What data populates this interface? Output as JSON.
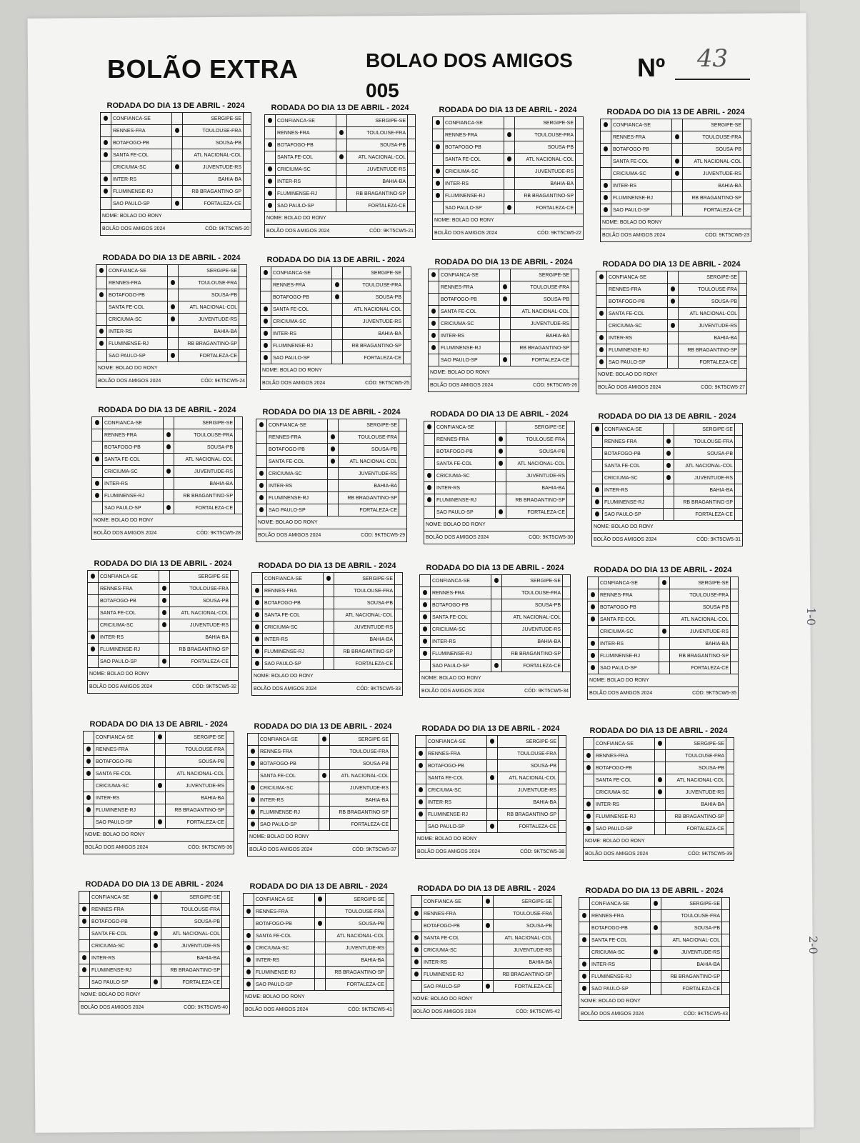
{
  "header": {
    "left_title": "BOLÃO EXTRA",
    "center_title": "BOLAO DOS AMIGOS",
    "center_number": "005",
    "number_label": "Nº",
    "number_handwritten": "43"
  },
  "card_common": {
    "title": "RODADA DO DIA 13 DE ABRIL - 2024",
    "name": "NOME: BOLAO DO RONY",
    "footer_left": "BOLÃO DOS AMIGOS 2024",
    "code_prefix": "CÓD: "
  },
  "matches": [
    {
      "home": "CONFIANCA-SE",
      "away": "SERGIPE-SE"
    },
    {
      "home": "RENNES-FRA",
      "away": "TOULOUSE-FRA"
    },
    {
      "home": "BOTAFOGO-PB",
      "away": "SOUSA-PB"
    },
    {
      "home": "SANTA FE-COL",
      "away": "ATL NACIONAL-COL"
    },
    {
      "home": "CRICIUMA-SC",
      "away": "JUVENTUDE-RS"
    },
    {
      "home": "INTER-RS",
      "away": "BAHIA-BA"
    },
    {
      "home": "FLUMINENSE-RJ",
      "away": "RB BRAGANTINO-SP"
    },
    {
      "home": "SAO PAULO-SP",
      "away": "FORTALEZA-CE"
    }
  ],
  "pick_legend": {
    "1": "mark in first column",
    "X": "mark in middle column"
  },
  "cards": [
    {
      "code": "9KT5CW5-20",
      "picks": [
        "1",
        "X",
        "1",
        "1",
        "X",
        "1",
        "1",
        "X"
      ]
    },
    {
      "code": "9KT5CW5-21",
      "picks": [
        "1",
        "X",
        "1",
        "X",
        "1",
        "1",
        "1",
        "1"
      ]
    },
    {
      "code": "9KT5CW5-22",
      "picks": [
        "1",
        "X",
        "1",
        "X",
        "1",
        "1",
        "1",
        "X"
      ]
    },
    {
      "code": "9KT5CW5-23",
      "picks": [
        "1",
        "X",
        "1",
        "X",
        "X",
        "1",
        "1",
        "1"
      ]
    },
    {
      "code": "9KT5CW5-24",
      "picks": [
        "1",
        "X",
        "1",
        "X",
        "X",
        "1",
        "1",
        "X"
      ]
    },
    {
      "code": "9KT5CW5-25",
      "picks": [
        "1",
        "X",
        "X",
        "1",
        "1",
        "1",
        "1",
        "1"
      ]
    },
    {
      "code": "9KT5CW5-26",
      "picks": [
        "1",
        "X",
        "X",
        "1",
        "1",
        "1",
        "1",
        "X"
      ]
    },
    {
      "code": "9KT5CW5-27",
      "picks": [
        "1",
        "X",
        "X",
        "1",
        "X",
        "1",
        "1",
        "1"
      ]
    },
    {
      "code": "9KT5CW5-28",
      "picks": [
        "1",
        "X",
        "X",
        "1",
        "X",
        "1",
        "1",
        "X"
      ]
    },
    {
      "code": "9KT5CW5-29",
      "picks": [
        "1",
        "X",
        "X",
        "X",
        "1",
        "1",
        "1",
        "1"
      ]
    },
    {
      "code": "9KT5CW5-30",
      "picks": [
        "1",
        "X",
        "X",
        "X",
        "1",
        "1",
        "1",
        "X"
      ]
    },
    {
      "code": "9KT5CW5-31",
      "picks": [
        "1",
        "X",
        "X",
        "X",
        "X",
        "1",
        "1",
        "1"
      ]
    },
    {
      "code": "9KT5CW5-32",
      "picks": [
        "1",
        "X",
        "X",
        "X",
        "X",
        "1",
        "1",
        "X"
      ]
    },
    {
      "code": "9KT5CW5-33",
      "picks": [
        "X",
        "1",
        "1",
        "1",
        "1",
        "1",
        "1",
        "1"
      ]
    },
    {
      "code": "9KT5CW5-34",
      "picks": [
        "X",
        "1",
        "1",
        "1",
        "1",
        "1",
        "1",
        "X"
      ]
    },
    {
      "code": "9KT5CW5-35",
      "picks": [
        "X",
        "1",
        "1",
        "1",
        "X",
        "1",
        "1",
        "1"
      ]
    },
    {
      "code": "9KT5CW5-36",
      "picks": [
        "X",
        "1",
        "1",
        "1",
        "X",
        "1",
        "1",
        "X"
      ]
    },
    {
      "code": "9KT5CW5-37",
      "picks": [
        "X",
        "1",
        "1",
        "X",
        "1",
        "1",
        "1",
        "1"
      ]
    },
    {
      "code": "9KT5CW5-38",
      "picks": [
        "X",
        "1",
        "1",
        "X",
        "1",
        "1",
        "1",
        "X"
      ]
    },
    {
      "code": "9KT5CW5-39",
      "picks": [
        "X",
        "1",
        "1",
        "X",
        "X",
        "1",
        "1",
        "1"
      ]
    },
    {
      "code": "9KT5CW5-40",
      "picks": [
        "X",
        "1",
        "1",
        "X",
        "X",
        "1",
        "1",
        "X"
      ]
    },
    {
      "code": "9KT5CW5-41",
      "picks": [
        "X",
        "1",
        "X",
        "1",
        "1",
        "1",
        "1",
        "1"
      ]
    },
    {
      "code": "9KT5CW5-42",
      "picks": [
        "X",
        "1",
        "X",
        "1",
        "1",
        "1",
        "1",
        "X"
      ]
    },
    {
      "code": "9KT5CW5-43",
      "picks": [
        "X",
        "1",
        "X",
        "1",
        "X",
        "1",
        "1",
        "1"
      ]
    }
  ],
  "handwriting": {
    "note_1": "1-0",
    "note_2": "2-0"
  }
}
